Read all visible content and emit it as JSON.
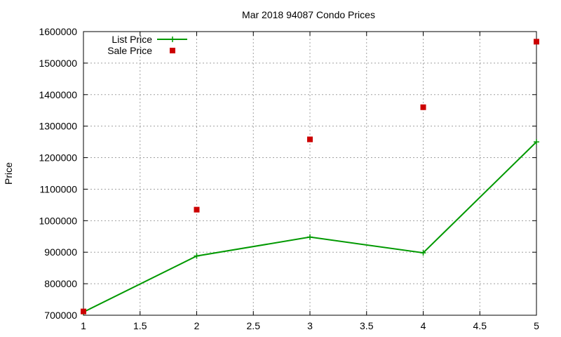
{
  "chart_data": {
    "type": "line",
    "title": "Mar 2018 94087 Condo Prices",
    "xlabel": "",
    "ylabel": "Price",
    "xlim": [
      1,
      5
    ],
    "ylim": [
      700000,
      1600000
    ],
    "xticks": [
      1,
      1.5,
      2,
      2.5,
      3,
      3.5,
      4,
      4.5,
      5
    ],
    "xtick_labels": [
      "1",
      "1.5",
      "2",
      "2.5",
      "3",
      "3.5",
      "4",
      "4.5",
      "5"
    ],
    "yticks": [
      700000,
      800000,
      900000,
      1000000,
      1100000,
      1200000,
      1300000,
      1400000,
      1500000,
      1600000
    ],
    "ytick_labels": [
      "700000",
      "800000",
      "900000",
      "1000000",
      "1100000",
      "1200000",
      "1300000",
      "1400000",
      "1500000",
      "1600000"
    ],
    "grid": true,
    "legend_position": "top-left",
    "series": [
      {
        "name": "List Price",
        "style": "line+cross",
        "color": "#009900",
        "x": [
          1,
          2,
          3,
          4,
          5
        ],
        "y": [
          710000,
          888000,
          948000,
          898000,
          1250000
        ]
      },
      {
        "name": "Sale Price",
        "style": "square",
        "color": "#cc0000",
        "x": [
          1,
          2,
          3,
          4,
          5
        ],
        "y": [
          712000,
          1035000,
          1258000,
          1360000,
          1568000
        ]
      }
    ]
  }
}
